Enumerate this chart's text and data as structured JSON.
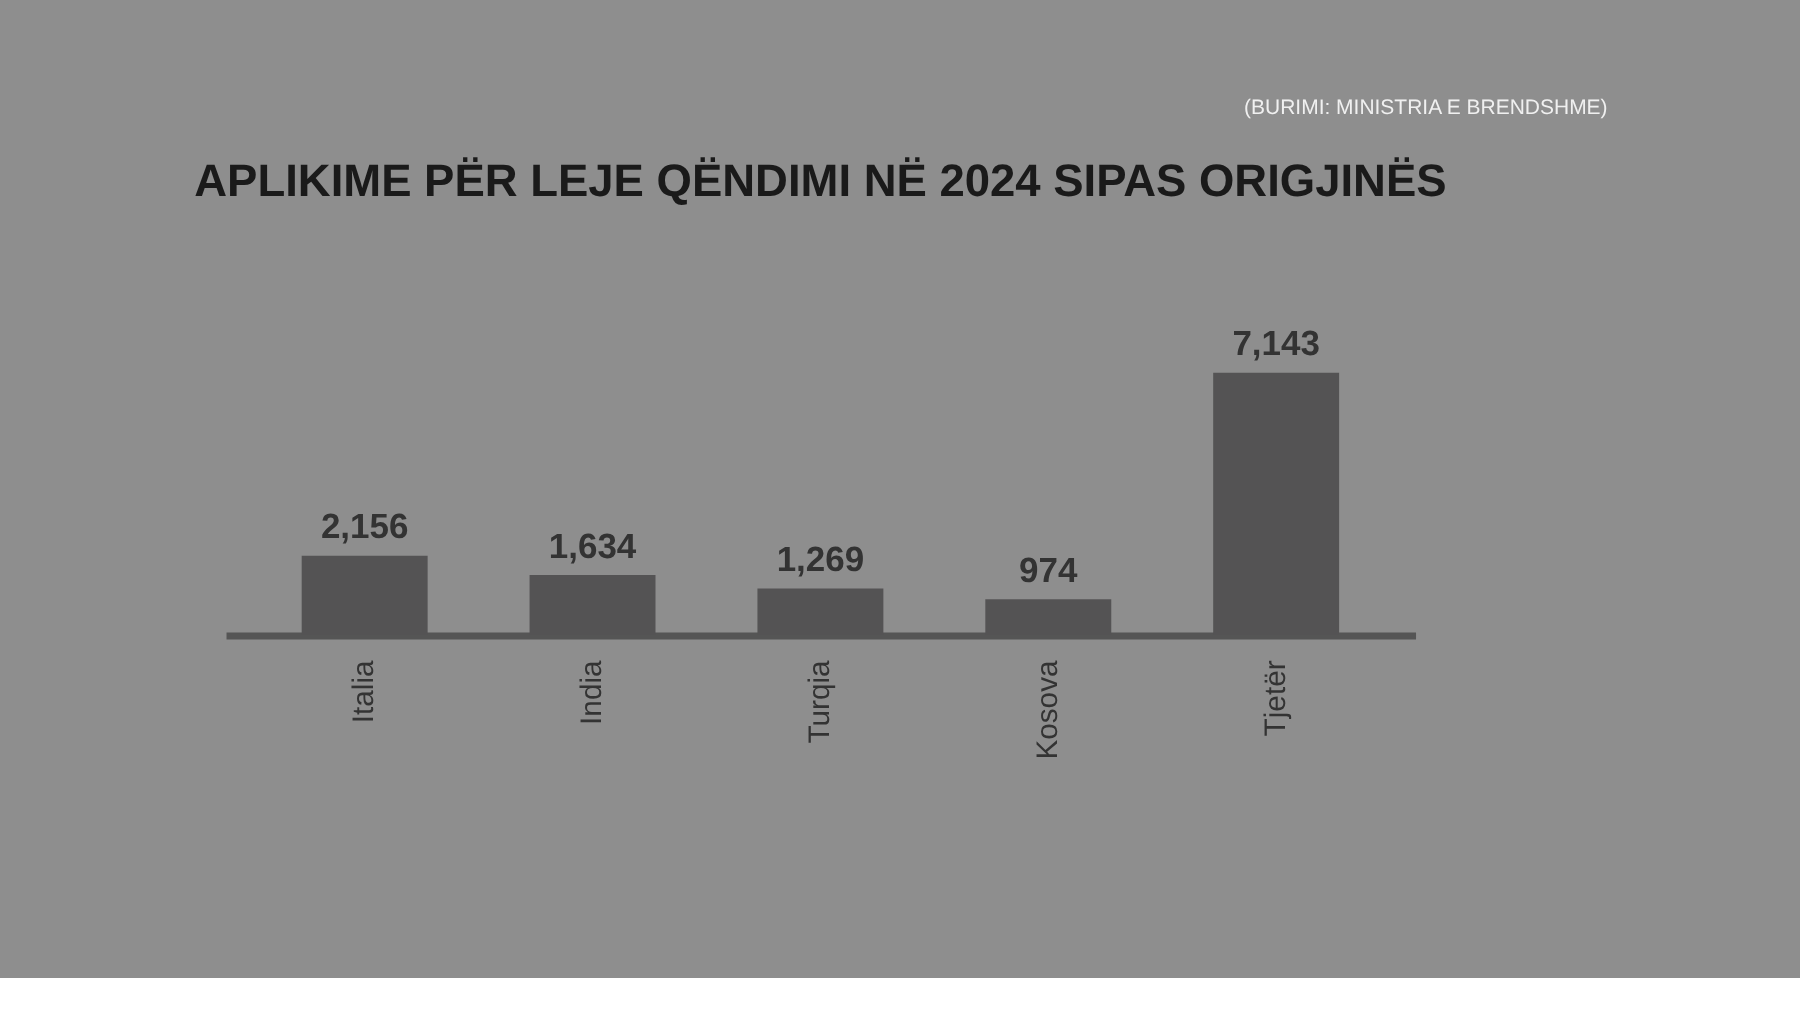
{
  "chart_data": {
    "type": "bar",
    "title": "APLIKIME PËR LEJE QËNDIMI NË 2024 SIPAS ORIGJINËS",
    "categories": [
      "Italia",
      "India",
      "Turqia",
      "Kosova",
      "Tjetër"
    ],
    "values": [
      2156,
      1634,
      1269,
      974,
      7143
    ],
    "value_labels": [
      "2,156",
      "1,634",
      "1,269",
      "974",
      "7,143"
    ],
    "color": "#545354",
    "annotations": [
      "(BURIMI: MINISTRIA E BRENDSHME)"
    ]
  }
}
